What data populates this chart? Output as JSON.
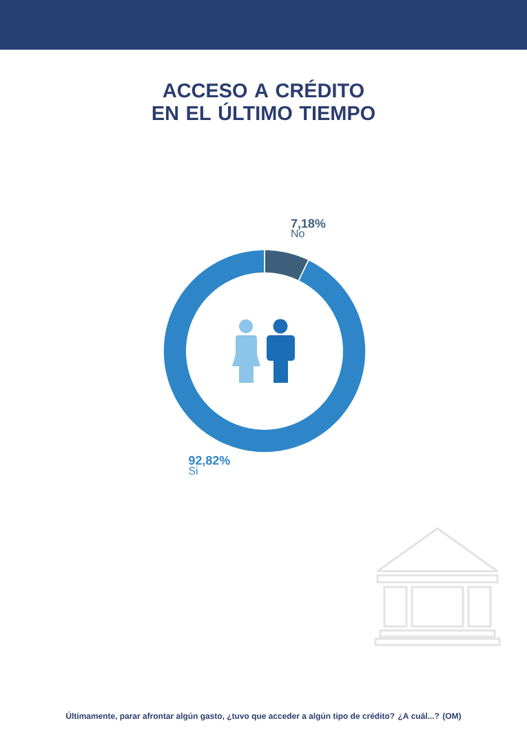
{
  "chart_data": {
    "type": "donut",
    "title": "ACCESO A CRÉDITO EN EL ÚLTIMO TIEMPO",
    "categories": [
      "No",
      "Si"
    ],
    "values": [
      7.18,
      92.82
    ],
    "colors": [
      "#3d5f7c",
      "#2e86c8"
    ],
    "value_labels": [
      "7,18%",
      "92,82%"
    ],
    "annotations": [
      "Últimamente, parar afrontar algún gasto, ¿tuvo que acceder a algún tipo de crédito? ¿A cuál...? (OM)"
    ]
  }
}
